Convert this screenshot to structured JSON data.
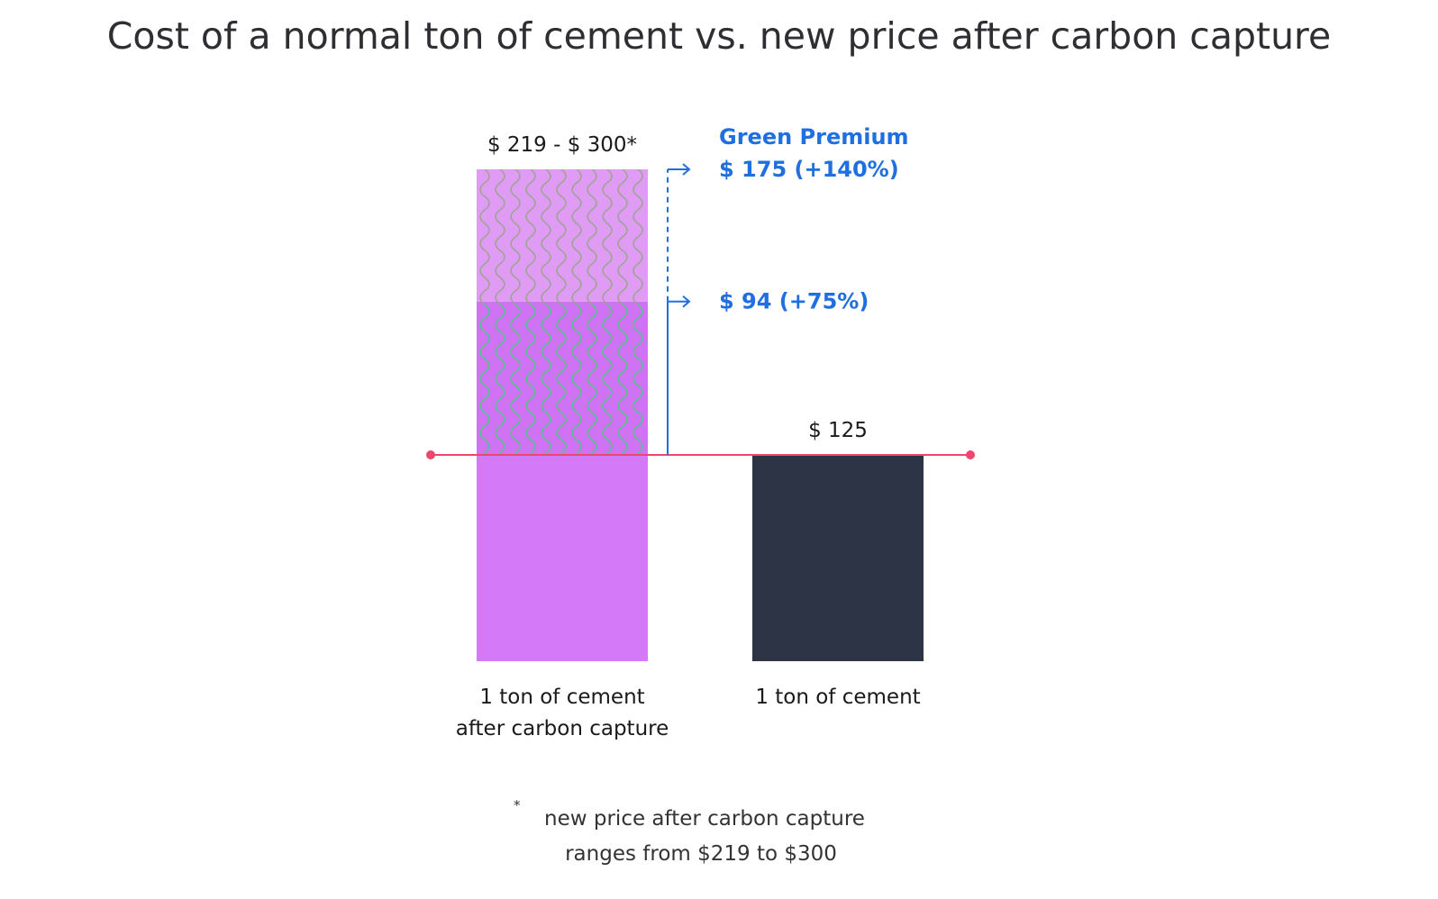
{
  "chart_data": {
    "type": "bar",
    "title": "Cost of a normal ton of cement vs. new price after carbon capture",
    "categories": [
      "1 ton of cement after carbon capture",
      "1 ton of cement"
    ],
    "category_lines": [
      [
        "1 ton of cement",
        "after carbon capture"
      ],
      [
        "1 ton of cement"
      ]
    ],
    "baseline_value": 125,
    "bars": [
      {
        "category": "1 ton of cement after carbon capture",
        "base": 125,
        "low": 219,
        "high": 300,
        "value_label": "$ 219 - $ 300*",
        "colors": {
          "base": "#d47af8",
          "low_segment": "#cf72f3",
          "high_segment": "#e09cf5"
        }
      },
      {
        "category": "1 ton of cement",
        "value": 125,
        "value_label": "$ 125",
        "colors": {
          "base": "#2d3445"
        }
      }
    ],
    "green_premium": {
      "heading": "Green Premium",
      "high_label": "$ 175 (+140%)",
      "low_label": "$ 94 (+75%)",
      "high": 175,
      "high_pct": 140,
      "low": 94,
      "low_pct": 75,
      "color": "#1f6fe0"
    },
    "reference_line": {
      "value": 125,
      "color": "#f0456c"
    },
    "footnote": {
      "marker": "*",
      "line1": "new price after carbon capture",
      "line2": "ranges from $219 to $300"
    }
  }
}
